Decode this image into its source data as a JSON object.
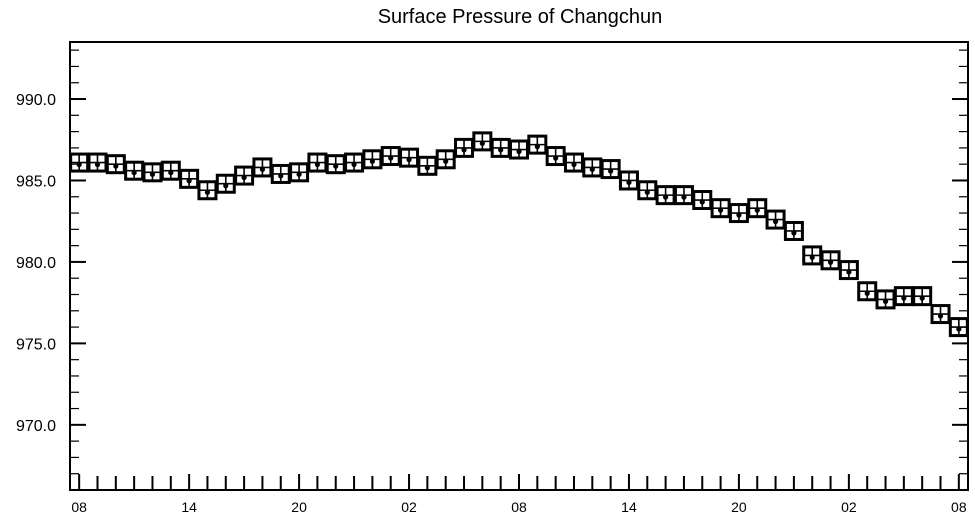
{
  "chart_data": {
    "type": "scatter",
    "title": "Surface Pressure of Changchun",
    "xlabel": "",
    "ylabel": "",
    "ylim": [
      966.0,
      993.5
    ],
    "y_ticks": [
      970.0,
      975.0,
      980.0,
      985.0,
      990.0
    ],
    "y_tick_labels": [
      "970.0",
      "975.0",
      "980.0",
      "985.0",
      "990.0"
    ],
    "x_tick_labels": [
      "08",
      "14",
      "20",
      "02",
      "08",
      "14",
      "20",
      "02",
      "08"
    ],
    "x_tick_hours": [
      0,
      6,
      12,
      18,
      24,
      30,
      36,
      42,
      48
    ],
    "x_range_hours": [
      -0.5,
      48.5
    ],
    "grid": false,
    "marker": "boxed-cross",
    "x_hours": [
      0,
      1,
      2,
      3,
      4,
      5,
      6,
      7,
      8,
      9,
      10,
      11,
      12,
      13,
      14,
      15,
      16,
      17,
      18,
      19,
      20,
      21,
      22,
      23,
      24,
      25,
      26,
      27,
      28,
      29,
      30,
      31,
      32,
      33,
      34,
      35,
      36,
      37,
      38,
      39,
      40,
      41,
      42,
      43,
      44,
      45,
      46,
      47,
      48
    ],
    "values": [
      986.1,
      986.1,
      986.0,
      985.6,
      985.5,
      985.6,
      985.1,
      984.4,
      984.8,
      985.3,
      985.8,
      985.4,
      985.5,
      986.1,
      986.0,
      986.1,
      986.3,
      986.5,
      986.4,
      985.9,
      986.3,
      987.0,
      987.4,
      987.0,
      986.9,
      987.2,
      986.5,
      986.1,
      985.8,
      985.7,
      985.0,
      984.4,
      984.1,
      984.1,
      983.8,
      983.3,
      983.0,
      983.3,
      982.6,
      981.9,
      980.4,
      980.1,
      979.5,
      978.2,
      977.7,
      977.9,
      977.9,
      976.8,
      976.0
    ]
  }
}
